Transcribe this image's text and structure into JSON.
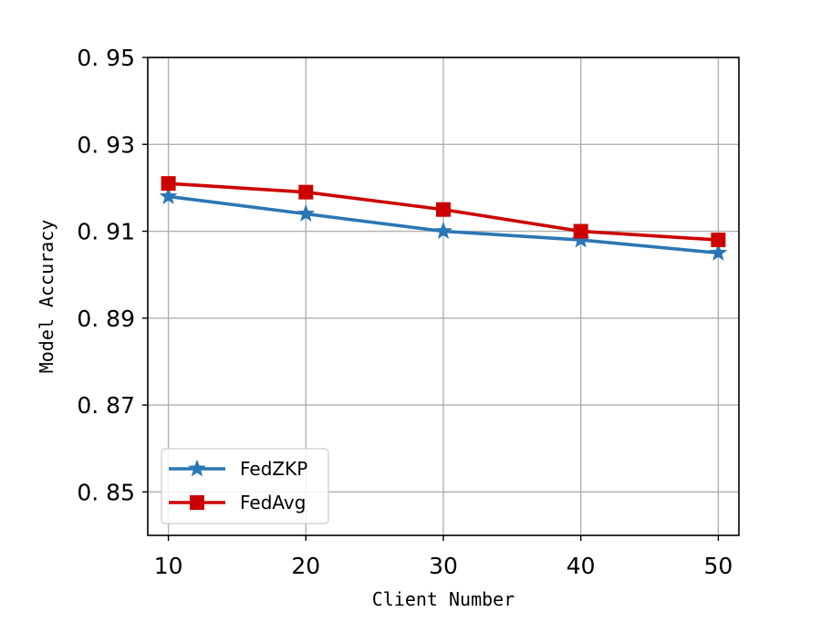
{
  "chart_data": {
    "type": "line",
    "title": "",
    "xlabel": "Client Number",
    "ylabel": "Model Accuracy",
    "x": [
      10,
      20,
      30,
      40,
      50
    ],
    "x_tick_labels": [
      "10",
      "20",
      "30",
      "40",
      "50"
    ],
    "y_tick_values": [
      0.85,
      0.87,
      0.89,
      0.91,
      0.93,
      0.95
    ],
    "y_tick_labels": [
      "0. 85",
      "0. 87",
      "0. 89",
      "0. 91",
      "0. 93",
      "0. 95"
    ],
    "xlim": [
      8.5,
      51.5
    ],
    "ylim": [
      0.84,
      0.95
    ],
    "grid": true,
    "legend_position": "lower-left",
    "series": [
      {
        "name": "FedZKP",
        "values": [
          0.918,
          0.914,
          0.91,
          0.908,
          0.905
        ],
        "color": "#2a77b4",
        "marker": "star"
      },
      {
        "name": "FedAvg",
        "values": [
          0.921,
          0.919,
          0.915,
          0.91,
          0.908
        ],
        "color": "#cc0000",
        "marker": "square"
      }
    ]
  }
}
